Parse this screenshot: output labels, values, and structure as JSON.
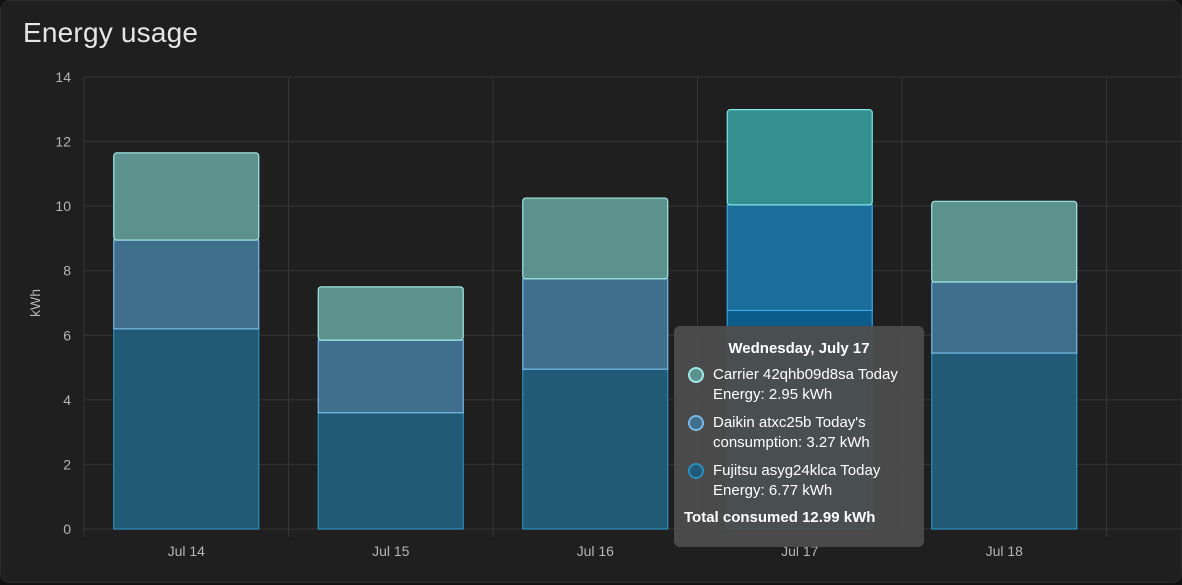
{
  "card": {
    "title": "Energy usage"
  },
  "colors": {
    "background": "#1f1f1f",
    "grid": "#363636",
    "tick_text": "#b5b5b5",
    "series_fill": [
      "#215a74",
      "#3f6f8d",
      "#5d918d"
    ],
    "series_stroke": [
      "#2b8fbf",
      "#79b8e8",
      "#9fe8e5"
    ],
    "highlight_fill": [
      "#0d5b8a",
      "#1b6d9c",
      "#33908f"
    ],
    "highlight_stroke": [
      "#2aa0e0",
      "#3aa6e6",
      "#7fe6e6"
    ]
  },
  "chart_data": {
    "type": "bar",
    "stacked": true,
    "categories": [
      "Jul 14",
      "Jul 15",
      "Jul 16",
      "Jul 17",
      "Jul 18"
    ],
    "series": [
      {
        "name": "Fujitsu asyg24klca Today Energy",
        "values": [
          6.2,
          3.6,
          4.95,
          6.77,
          5.45
        ]
      },
      {
        "name": "Daikin atxc25b Today's consumption",
        "values": [
          2.75,
          2.25,
          2.8,
          3.27,
          2.2
        ]
      },
      {
        "name": "Carrier 42qhb09d8sa Today Energy",
        "values": [
          2.7,
          1.65,
          2.5,
          2.95,
          2.5
        ]
      }
    ],
    "ylabel": "kWh",
    "ylim": [
      0,
      14
    ],
    "yticks": [
      0,
      2,
      4,
      6,
      8,
      10,
      12,
      14
    ],
    "grid": true,
    "highlighted_category": "Jul 17"
  },
  "tooltip": {
    "title": "Wednesday, July 17",
    "items": [
      {
        "line1": "Carrier 42qhb09d8sa Today",
        "line2": "Energy: 2.95 kWh"
      },
      {
        "line1": "Daikin atxc25b Today's",
        "line2": "consumption: 3.27 kWh"
      },
      {
        "line1": "Fujitsu asyg24klca Today",
        "line2": "Energy: 6.77 kWh"
      }
    ],
    "total": "Total consumed 12.99 kWh"
  }
}
